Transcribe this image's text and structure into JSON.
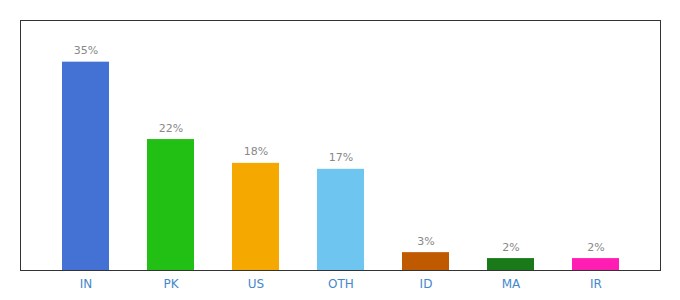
{
  "chart_data": {
    "type": "bar",
    "categories": [
      "IN",
      "PK",
      "US",
      "OTH",
      "ID",
      "MA",
      "IR"
    ],
    "values": [
      35,
      22,
      18,
      17,
      3,
      2,
      2
    ],
    "value_labels": [
      "35%",
      "22%",
      "18%",
      "17%",
      "3%",
      "2%",
      "2%"
    ],
    "colors": [
      "#4472d4",
      "#22c015",
      "#f5a800",
      "#6ec6f0",
      "#c05a00",
      "#1a7a1a",
      "#ff1db4"
    ],
    "ylim": [
      0,
      42
    ],
    "data_labels": true,
    "tick_labels": "x",
    "grid": false
  }
}
